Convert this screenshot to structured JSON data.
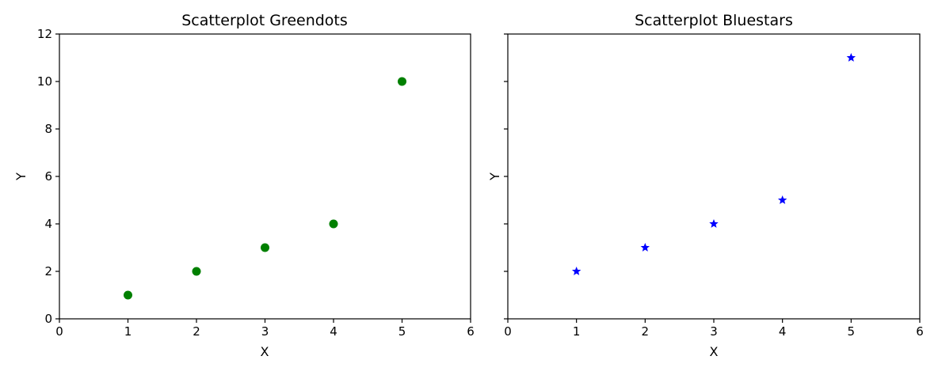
{
  "chart_data": [
    {
      "type": "scatter",
      "title": "Scatterplot Greendots",
      "xlabel": "X",
      "ylabel": "Y",
      "xlim": [
        0,
        6
      ],
      "ylim": [
        0,
        12
      ],
      "xticks": [
        0,
        1,
        2,
        3,
        4,
        5,
        6
      ],
      "yticks": [
        0,
        2,
        4,
        6,
        8,
        10,
        12
      ],
      "show_ytick_labels": true,
      "grid": false,
      "series": [
        {
          "marker": "circle",
          "color": "#008000",
          "x": [
            1,
            2,
            3,
            4,
            5
          ],
          "y": [
            1,
            2,
            3,
            4,
            10
          ]
        }
      ]
    },
    {
      "type": "scatter",
      "title": "Scatterplot Bluestars",
      "xlabel": "X",
      "ylabel": "Y",
      "xlim": [
        0,
        6
      ],
      "ylim": [
        0,
        12
      ],
      "xticks": [
        0,
        1,
        2,
        3,
        4,
        5,
        6
      ],
      "yticks": [
        0,
        2,
        4,
        6,
        8,
        10,
        12
      ],
      "show_ytick_labels": false,
      "grid": false,
      "series": [
        {
          "marker": "star",
          "color": "#0000ff",
          "x": [
            1,
            2,
            3,
            4,
            5
          ],
          "y": [
            2,
            3,
            4,
            5,
            11
          ]
        }
      ]
    }
  ]
}
